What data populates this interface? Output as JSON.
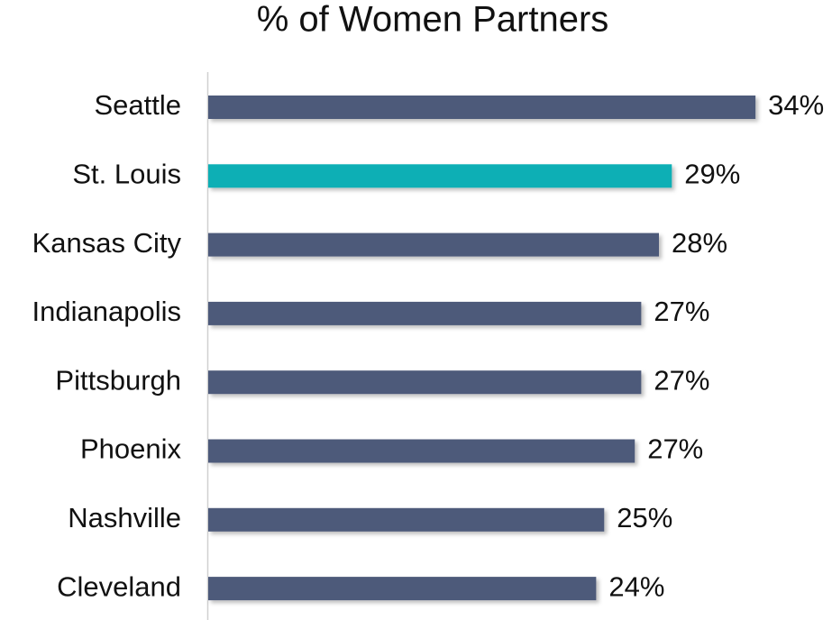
{
  "chart_data": {
    "type": "barh",
    "title": "% of Women Partners",
    "categories": [
      "Seattle",
      "St. Louis",
      "Kansas City",
      "Indianapolis",
      "Pittsburgh",
      "Phoenix",
      "Nashville",
      "Cleveland"
    ],
    "values": [
      34,
      28.8,
      28,
      26.9,
      26.9,
      26.5,
      24.6,
      24.1
    ],
    "value_labels": [
      "34%",
      "29%",
      "28%",
      "27%",
      "27%",
      "27%",
      "25%",
      "24%"
    ],
    "colors": [
      "#4e5a7a",
      "#0aafb5",
      "#4e5a7a",
      "#4e5a7a",
      "#4e5a7a",
      "#4e5a7a",
      "#4e5a7a",
      "#4e5a7a"
    ],
    "xlim": [
      0,
      35
    ]
  }
}
